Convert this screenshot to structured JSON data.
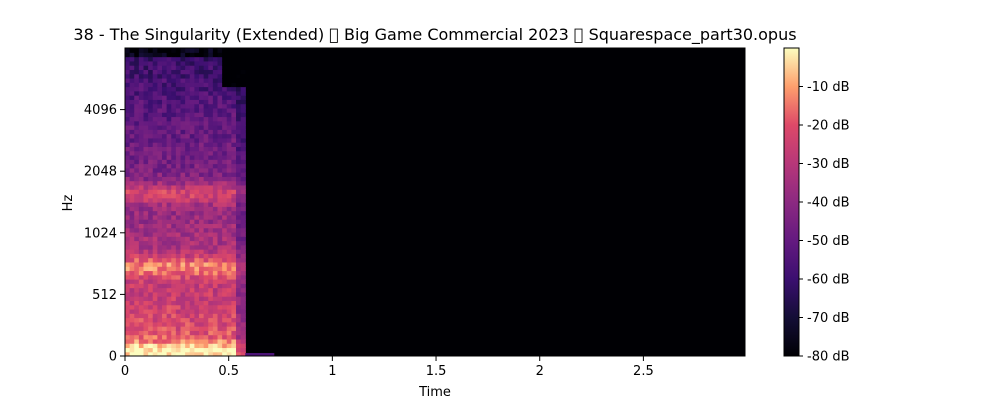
{
  "chart_data": {
    "type": "heatmap",
    "title": "38 - The Singularity (Extended) \u0000 Big Game Commercial 2023 \u0000 Squarespace_part30.opus",
    "xlabel": "Time",
    "ylabel": "Hz",
    "xlim": [
      0,
      2.99
    ],
    "x_ticks": [
      {
        "value": 0,
        "label": "0"
      },
      {
        "value": 0.5,
        "label": "0.5"
      },
      {
        "value": 1,
        "label": "1"
      },
      {
        "value": 1.5,
        "label": "1.5"
      },
      {
        "value": 2,
        "label": "2"
      },
      {
        "value": 2.5,
        "label": "2.5"
      }
    ],
    "y_scale": "log2",
    "y_ticks": [
      {
        "value": 0,
        "label": "0"
      },
      {
        "value": 512,
        "label": "512"
      },
      {
        "value": 1024,
        "label": "1024"
      },
      {
        "value": 2048,
        "label": "2048"
      },
      {
        "value": 4096,
        "label": "4096"
      }
    ],
    "colormap": "magma",
    "colorbar": {
      "range_db": [
        -80,
        0
      ],
      "ticks": [
        {
          "value": -10,
          "label": "-10 dB"
        },
        {
          "value": -20,
          "label": "-20 dB"
        },
        {
          "value": -30,
          "label": "-30 dB"
        },
        {
          "value": -40,
          "label": "-40 dB"
        },
        {
          "value": -50,
          "label": "-50 dB"
        },
        {
          "value": -60,
          "label": "-60 dB"
        },
        {
          "value": -70,
          "label": "-70 dB"
        },
        {
          "value": -80,
          "label": "-80 dB"
        }
      ]
    },
    "signal_end_time": 0.58,
    "hot_bands_hz": [
      40,
      700,
      1600
    ],
    "grid": false
  }
}
